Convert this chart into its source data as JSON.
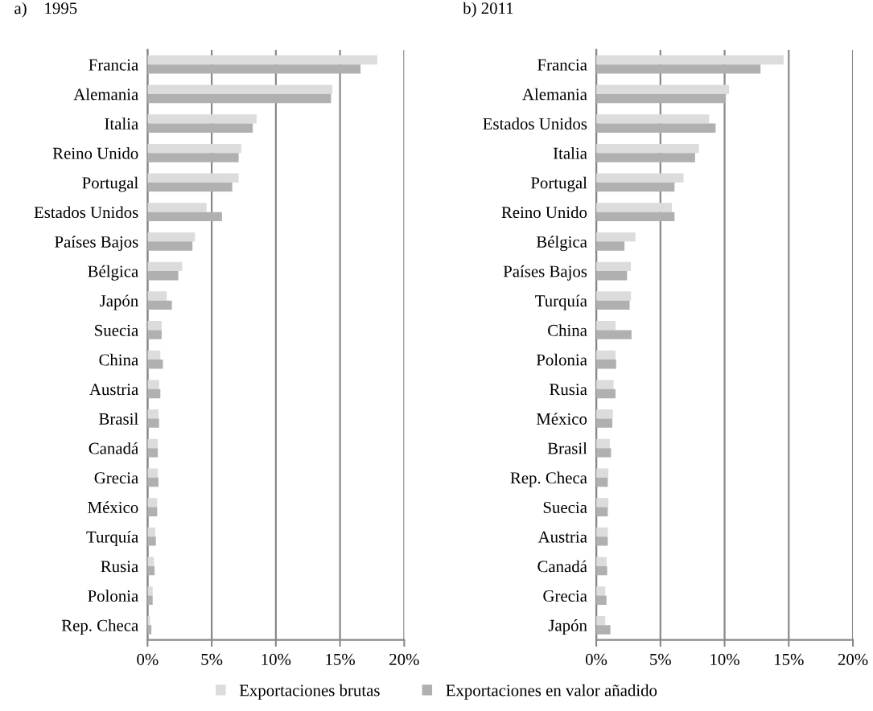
{
  "chart_data": [
    {
      "type": "bar",
      "orientation": "horizontal",
      "title": "a)    1995",
      "categories": [
        "Francia",
        "Alemania",
        "Italia",
        "Reino Unido",
        "Portugal",
        "Estados Unidos",
        "Países Bajos",
        "Bélgica",
        "Japón",
        "Suecia",
        "China",
        "Austria",
        "Brasil",
        "Canadá",
        "Grecia",
        "México",
        "Turquía",
        "Rusia",
        "Polonia",
        "Rep. Checa"
      ],
      "series": [
        {
          "name": "Exportaciones brutas",
          "color": "#dcdcdc",
          "values": [
            17.9,
            14.4,
            8.5,
            7.3,
            7.1,
            4.6,
            3.7,
            2.7,
            1.5,
            1.1,
            1.0,
            0.9,
            0.85,
            0.8,
            0.8,
            0.75,
            0.6,
            0.5,
            0.4,
            0.2
          ]
        },
        {
          "name": "Exportaciones en valor añadido",
          "color": "#b0b0b0",
          "values": [
            16.6,
            14.3,
            8.2,
            7.1,
            6.6,
            5.8,
            3.5,
            2.4,
            1.9,
            1.1,
            1.2,
            1.0,
            0.9,
            0.8,
            0.85,
            0.75,
            0.65,
            0.55,
            0.4,
            0.3
          ]
        }
      ],
      "xlim": [
        0,
        20
      ],
      "xticks": [
        {
          "value": 0,
          "label": "0%"
        },
        {
          "value": 5,
          "label": "5%"
        },
        {
          "value": 10,
          "label": "10%"
        },
        {
          "value": 15,
          "label": "15%"
        },
        {
          "value": 20,
          "label": "20%"
        }
      ],
      "grid": "x",
      "legend": "bottom"
    },
    {
      "type": "bar",
      "orientation": "horizontal",
      "title": "b) 2011",
      "categories": [
        "Francia",
        "Alemania",
        "Estados Unidos",
        "Italia",
        "Portugal",
        "Reino Unido",
        "Bélgica",
        "Países Bajos",
        "Turquía",
        "China",
        "Polonia",
        "Rusia",
        "México",
        "Brasil",
        "Rep. Checa",
        "Suecia",
        "Austria",
        "Canadá",
        "Grecia",
        "Japón"
      ],
      "series": [
        {
          "name": "Exportaciones brutas",
          "color": "#dcdcdc",
          "values": [
            14.6,
            10.35,
            8.8,
            8.0,
            6.8,
            5.9,
            3.05,
            2.7,
            2.7,
            1.5,
            1.5,
            1.35,
            1.3,
            1.05,
            0.95,
            0.95,
            0.9,
            0.8,
            0.7,
            0.7
          ]
        },
        {
          "name": "Exportaciones en valor añadido",
          "color": "#b0b0b0",
          "values": [
            12.8,
            10.1,
            9.3,
            7.7,
            6.1,
            6.1,
            2.2,
            2.4,
            2.6,
            2.75,
            1.55,
            1.5,
            1.25,
            1.15,
            0.9,
            0.9,
            0.9,
            0.85,
            0.8,
            1.1
          ]
        }
      ],
      "xlim": [
        0,
        20
      ],
      "xticks": [
        {
          "value": 0,
          "label": "0%"
        },
        {
          "value": 5,
          "label": "5%"
        },
        {
          "value": 10,
          "label": "10%"
        },
        {
          "value": 15,
          "label": "15%"
        },
        {
          "value": 20,
          "label": "20%"
        }
      ],
      "grid": "x",
      "legend": "bottom"
    }
  ]
}
